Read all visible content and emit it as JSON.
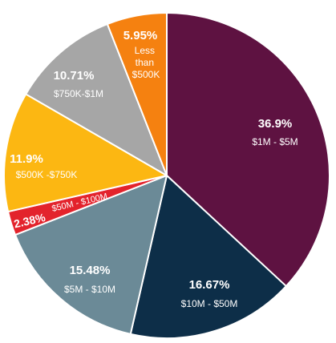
{
  "chart_data": {
    "type": "pie",
    "title": "",
    "start_angle_deg": 0,
    "direction": "clockwise",
    "slices": [
      {
        "label": "$1M - $5M",
        "value": 36.9,
        "value_label": "36.9%",
        "color": "#5e1241"
      },
      {
        "label": "$10M - $50M",
        "value": 16.67,
        "value_label": "16.67%",
        "color": "#0d2e48"
      },
      {
        "label": "$5M - $10M",
        "value": 15.48,
        "value_label": "15.48%",
        "color": "#6b8a97"
      },
      {
        "label": "$50M - $100M",
        "value": 2.38,
        "value_label": "2.38%",
        "color": "#e3232c"
      },
      {
        "label": "$500K -$750K",
        "value": 11.9,
        "value_label": "11.9%",
        "color": "#fcb712"
      },
      {
        "label": "$750K-$1M",
        "value": 10.71,
        "value_label": "10.71%",
        "color": "#a6a6a6"
      },
      {
        "label": "Less than $500K",
        "value": 5.95,
        "value_label": "5.95%",
        "color": "#f58110"
      }
    ]
  }
}
